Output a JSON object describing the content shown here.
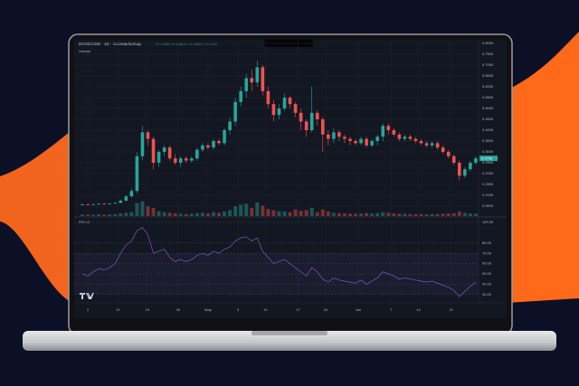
{
  "chart_data": {
    "type": "candlestick",
    "title": "DOGE/USD · 1D · CoinMarketCap",
    "header_ohlc": "O 0.2500 H 0.2800 L 0.2400 C 0.2700",
    "volume_label": "Volume",
    "rsi_label": "RSI 14",
    "last_price_label": "0.2700",
    "up_color": "#26a69a",
    "down_color": "#ef5350",
    "rsi_color": "#7e57c2",
    "grid": true,
    "xlim": [
      0,
      73
    ],
    "xticks": [
      {
        "value": 1.5,
        "label": "2"
      },
      {
        "value": 7,
        "label": "12"
      },
      {
        "value": 12.4,
        "label": "19"
      },
      {
        "value": 18,
        "label": "26"
      },
      {
        "value": 23.5,
        "label": "May"
      },
      {
        "value": 29,
        "label": "3"
      },
      {
        "value": 34,
        "label": "10"
      },
      {
        "value": 40,
        "label": "17"
      },
      {
        "value": 45,
        "label": "24"
      },
      {
        "value": 51,
        "label": "Jun"
      },
      {
        "value": 57,
        "label": "7"
      },
      {
        "value": 62,
        "label": "14"
      },
      {
        "value": 68,
        "label": "21"
      }
    ],
    "ylim": [
      0.05,
      0.8
    ],
    "yticks": [
      {
        "value": 0.05,
        "label": "0.0500"
      },
      {
        "value": 0.1,
        "label": "0.1000"
      },
      {
        "value": 0.15,
        "label": "0.1500"
      },
      {
        "value": 0.2,
        "label": "0.2000"
      },
      {
        "value": 0.25,
        "label": "0.2500"
      },
      {
        "value": 0.3,
        "label": "0.3000"
      },
      {
        "value": 0.35,
        "label": "0.3500"
      },
      {
        "value": 0.4,
        "label": "0.4000"
      },
      {
        "value": 0.45,
        "label": "0.4500"
      },
      {
        "value": 0.5,
        "label": "0.5000"
      },
      {
        "value": 0.55,
        "label": "0.5500"
      },
      {
        "value": 0.6,
        "label": "0.6000"
      },
      {
        "value": 0.65,
        "label": "0.6500"
      },
      {
        "value": 0.7,
        "label": "0.7000"
      },
      {
        "value": 0.75,
        "label": "0.7500"
      },
      {
        "value": 0.8,
        "label": "0.8000"
      }
    ],
    "open": [
      0.057,
      0.058,
      0.057,
      0.059,
      0.061,
      0.06,
      0.062,
      0.065,
      0.075,
      0.095,
      0.12,
      0.28,
      0.39,
      0.36,
      0.25,
      0.3,
      0.32,
      0.27,
      0.25,
      0.27,
      0.26,
      0.27,
      0.31,
      0.33,
      0.32,
      0.35,
      0.34,
      0.4,
      0.44,
      0.53,
      0.58,
      0.64,
      0.62,
      0.69,
      0.58,
      0.52,
      0.47,
      0.5,
      0.55,
      0.52,
      0.48,
      0.44,
      0.4,
      0.48,
      0.45,
      0.38,
      0.36,
      0.39,
      0.37,
      0.36,
      0.35,
      0.34,
      0.36,
      0.33,
      0.35,
      0.37,
      0.42,
      0.4,
      0.38,
      0.36,
      0.37,
      0.36,
      0.35,
      0.34,
      0.33,
      0.34,
      0.32,
      0.3,
      0.28,
      0.25,
      0.19,
      0.22,
      0.25
    ],
    "high": [
      0.062,
      0.061,
      0.062,
      0.063,
      0.064,
      0.064,
      0.068,
      0.08,
      0.1,
      0.13,
      0.3,
      0.42,
      0.4,
      0.37,
      0.31,
      0.33,
      0.33,
      0.29,
      0.28,
      0.28,
      0.28,
      0.32,
      0.34,
      0.34,
      0.36,
      0.36,
      0.41,
      0.46,
      0.55,
      0.6,
      0.66,
      0.68,
      0.72,
      0.7,
      0.6,
      0.54,
      0.52,
      0.57,
      0.56,
      0.53,
      0.5,
      0.45,
      0.6,
      0.49,
      0.46,
      0.4,
      0.41,
      0.4,
      0.38,
      0.37,
      0.36,
      0.37,
      0.37,
      0.36,
      0.38,
      0.43,
      0.43,
      0.41,
      0.39,
      0.38,
      0.38,
      0.37,
      0.36,
      0.35,
      0.35,
      0.35,
      0.33,
      0.31,
      0.29,
      0.26,
      0.23,
      0.26,
      0.28
    ],
    "low": [
      0.055,
      0.055,
      0.055,
      0.057,
      0.058,
      0.058,
      0.06,
      0.063,
      0.072,
      0.09,
      0.11,
      0.26,
      0.33,
      0.22,
      0.23,
      0.28,
      0.26,
      0.24,
      0.23,
      0.25,
      0.25,
      0.26,
      0.3,
      0.31,
      0.31,
      0.33,
      0.33,
      0.38,
      0.42,
      0.51,
      0.55,
      0.58,
      0.6,
      0.56,
      0.5,
      0.44,
      0.45,
      0.49,
      0.5,
      0.46,
      0.4,
      0.37,
      0.39,
      0.42,
      0.3,
      0.33,
      0.34,
      0.35,
      0.34,
      0.33,
      0.33,
      0.33,
      0.32,
      0.32,
      0.33,
      0.35,
      0.38,
      0.37,
      0.35,
      0.35,
      0.35,
      0.34,
      0.33,
      0.32,
      0.32,
      0.31,
      0.29,
      0.27,
      0.24,
      0.17,
      0.18,
      0.21,
      0.24
    ],
    "close": [
      0.058,
      0.057,
      0.059,
      0.061,
      0.06,
      0.062,
      0.065,
      0.075,
      0.095,
      0.12,
      0.28,
      0.39,
      0.36,
      0.25,
      0.3,
      0.32,
      0.27,
      0.25,
      0.27,
      0.26,
      0.27,
      0.31,
      0.33,
      0.32,
      0.35,
      0.34,
      0.4,
      0.44,
      0.53,
      0.58,
      0.64,
      0.62,
      0.69,
      0.58,
      0.52,
      0.47,
      0.5,
      0.55,
      0.52,
      0.48,
      0.44,
      0.4,
      0.48,
      0.45,
      0.38,
      0.36,
      0.39,
      0.37,
      0.36,
      0.35,
      0.34,
      0.36,
      0.33,
      0.35,
      0.37,
      0.42,
      0.4,
      0.38,
      0.36,
      0.37,
      0.36,
      0.35,
      0.34,
      0.33,
      0.34,
      0.32,
      0.3,
      0.28,
      0.25,
      0.19,
      0.22,
      0.25,
      0.27
    ],
    "volume_ylim": [
      0,
      100
    ],
    "volume": [
      5,
      4,
      4,
      5,
      4,
      5,
      6,
      8,
      10,
      12,
      40,
      45,
      30,
      25,
      15,
      12,
      10,
      8,
      7,
      6,
      7,
      9,
      10,
      8,
      12,
      10,
      14,
      18,
      30,
      35,
      38,
      25,
      42,
      32,
      22,
      18,
      15,
      14,
      12,
      20,
      16,
      18,
      25,
      12,
      20,
      14,
      10,
      9,
      8,
      7,
      7,
      8,
      9,
      8,
      9,
      12,
      10,
      8,
      7,
      7,
      6,
      6,
      6,
      5,
      6,
      6,
      7,
      8,
      9,
      14,
      10,
      8,
      7
    ],
    "rsi_ylim": [
      25,
      100
    ],
    "rsi_yticks": [
      {
        "value": 100,
        "label": "100.00"
      },
      {
        "value": 80,
        "label": "80.00"
      },
      {
        "value": 70,
        "label": "70.00"
      },
      {
        "value": 60,
        "label": "60.00"
      },
      {
        "value": 50,
        "label": "50.00"
      },
      {
        "value": 40,
        "label": "40.00"
      },
      {
        "value": 30,
        "label": "30.00"
      }
    ],
    "rsi": [
      50,
      48,
      52,
      55,
      54,
      56,
      60,
      70,
      78,
      82,
      92,
      95,
      88,
      70,
      72,
      74,
      66,
      62,
      64,
      62,
      64,
      68,
      70,
      68,
      72,
      70,
      74,
      76,
      82,
      85,
      86,
      82,
      85,
      72,
      66,
      60,
      62,
      64,
      60,
      56,
      52,
      48,
      56,
      52,
      45,
      42,
      46,
      44,
      43,
      42,
      41,
      44,
      40,
      43,
      46,
      52,
      50,
      48,
      45,
      46,
      45,
      44,
      43,
      42,
      43,
      41,
      39,
      37,
      34,
      28,
      33,
      38,
      42
    ]
  }
}
